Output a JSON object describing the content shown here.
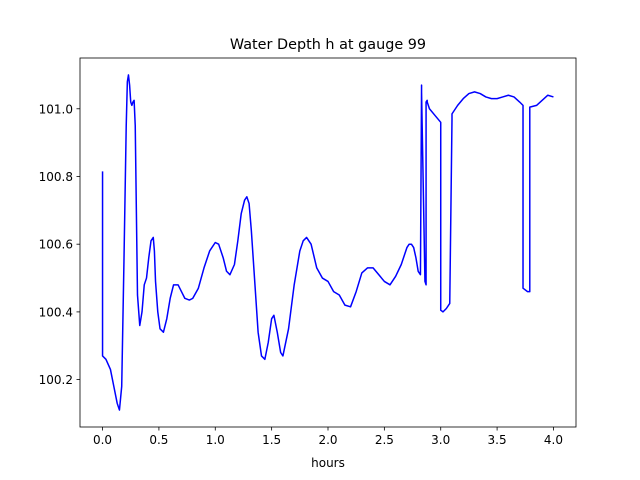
{
  "chart_data": {
    "type": "line",
    "title": "Water Depth h at gauge 99",
    "xlabel": "hours",
    "ylabel": "",
    "xlim": [
      -0.2,
      4.2
    ],
    "ylim": [
      100.06,
      101.15
    ],
    "xticks": [
      0.0,
      0.5,
      1.0,
      1.5,
      2.0,
      2.5,
      3.0,
      3.5,
      4.0
    ],
    "xtick_labels": [
      "0.0",
      "0.5",
      "1.0",
      "1.5",
      "2.0",
      "2.5",
      "3.0",
      "3.5",
      "4.0"
    ],
    "yticks": [
      100.2,
      100.4,
      100.6,
      100.8,
      101.0
    ],
    "ytick_labels": [
      "100.2",
      "100.4",
      "100.6",
      "100.8",
      "101.0"
    ],
    "grid": false,
    "series": [
      {
        "color": "#0000ff",
        "x": [
          0.0,
          0.0,
          0.03,
          0.07,
          0.1,
          0.13,
          0.15,
          0.17,
          0.19,
          0.21,
          0.22,
          0.23,
          0.24,
          0.25,
          0.26,
          0.27,
          0.28,
          0.29,
          0.3,
          0.31,
          0.33,
          0.35,
          0.37,
          0.39,
          0.41,
          0.43,
          0.45,
          0.46,
          0.47,
          0.49,
          0.51,
          0.54,
          0.57,
          0.6,
          0.63,
          0.67,
          0.7,
          0.73,
          0.77,
          0.8,
          0.85,
          0.9,
          0.95,
          1.0,
          1.03,
          1.07,
          1.1,
          1.13,
          1.17,
          1.2,
          1.23,
          1.26,
          1.28,
          1.3,
          1.32,
          1.35,
          1.38,
          1.41,
          1.44,
          1.47,
          1.5,
          1.52,
          1.55,
          1.58,
          1.6,
          1.65,
          1.7,
          1.75,
          1.78,
          1.81,
          1.85,
          1.9,
          1.95,
          2.0,
          2.05,
          2.1,
          2.15,
          2.2,
          2.25,
          2.3,
          2.35,
          2.4,
          2.45,
          2.5,
          2.55,
          2.6,
          2.65,
          2.7,
          2.72,
          2.74,
          2.76,
          2.78,
          2.8,
          2.82,
          2.83,
          2.83,
          2.86,
          2.87,
          2.87,
          2.88,
          2.88,
          2.9,
          2.95,
          3.0,
          3.0,
          3.02,
          3.05,
          3.08,
          3.1,
          3.1,
          3.15,
          3.2,
          3.25,
          3.3,
          3.35,
          3.4,
          3.45,
          3.5,
          3.55,
          3.6,
          3.65,
          3.7,
          3.73,
          3.73,
          3.77,
          3.79,
          3.79,
          3.85,
          3.9,
          3.95,
          4.0
        ],
        "y": [
          100.815,
          100.27,
          100.26,
          100.23,
          100.18,
          100.13,
          100.11,
          100.18,
          100.55,
          100.95,
          101.08,
          101.1,
          101.07,
          101.02,
          101.01,
          101.02,
          101.025,
          100.95,
          100.7,
          100.45,
          100.36,
          100.4,
          100.48,
          100.5,
          100.56,
          100.61,
          100.62,
          100.58,
          100.49,
          100.4,
          100.35,
          100.34,
          100.38,
          100.44,
          100.48,
          100.48,
          100.46,
          100.44,
          100.435,
          100.44,
          100.47,
          100.53,
          100.58,
          100.605,
          100.6,
          100.56,
          100.52,
          100.51,
          100.54,
          100.61,
          100.69,
          100.73,
          100.74,
          100.72,
          100.64,
          100.49,
          100.34,
          100.27,
          100.26,
          100.31,
          100.38,
          100.39,
          100.34,
          100.28,
          100.27,
          100.35,
          100.48,
          100.58,
          100.61,
          100.62,
          100.6,
          100.53,
          100.5,
          100.49,
          100.46,
          100.45,
          100.42,
          100.415,
          100.46,
          100.515,
          100.53,
          100.53,
          100.51,
          100.49,
          100.48,
          100.505,
          100.54,
          100.59,
          100.6,
          100.6,
          100.59,
          100.56,
          100.52,
          100.51,
          101.07,
          101.05,
          100.49,
          100.48,
          101.02,
          101.025,
          101.02,
          101.0,
          100.98,
          100.96,
          100.405,
          100.4,
          100.41,
          100.425,
          100.97,
          100.985,
          101.01,
          101.03,
          101.045,
          101.05,
          101.045,
          101.035,
          101.03,
          101.03,
          101.035,
          101.04,
          101.035,
          101.02,
          101.01,
          100.47,
          100.46,
          100.46,
          101.005,
          101.01,
          101.025,
          101.04,
          101.035
        ]
      }
    ]
  }
}
